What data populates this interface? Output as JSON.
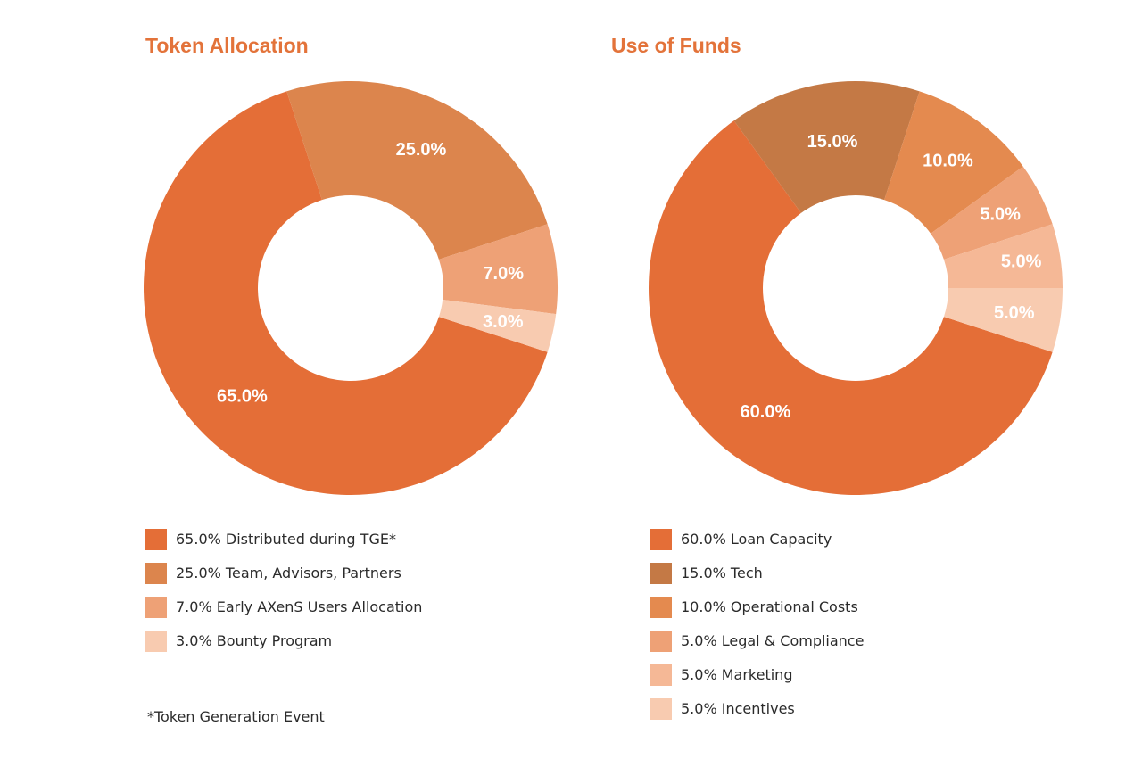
{
  "chart_data": [
    {
      "type": "pie",
      "variant": "donut",
      "title": "Token Allocation",
      "categories": [
        "Distributed during TGE*",
        "Team, Advisors, Partners",
        "Early AXenS Users Allocation",
        "Bounty Program"
      ],
      "values": [
        65.0,
        25.0,
        7.0,
        3.0
      ],
      "data_labels": [
        "65.0%",
        "25.0%",
        "7.0%",
        "3.0%"
      ],
      "colors": [
        "#e46e37",
        "#dc854d",
        "#eea176",
        "#f8cbb0"
      ],
      "legend": {
        "placement": "bottom",
        "entries": [
          "65.0% Distributed during TGE*",
          "25.0% Team, Advisors, Partners",
          "7.0% Early AXenS Users Allocation",
          "3.0% Bounty Program"
        ]
      },
      "footnote": "*Token Generation Event"
    },
    {
      "type": "pie",
      "variant": "donut",
      "title": "Use of Funds",
      "categories": [
        "Loan Capacity",
        "Tech",
        "Operational Costs",
        "Legal & Compliance",
        "Marketing",
        "Incentives"
      ],
      "values": [
        60.0,
        15.0,
        10.0,
        5.0,
        5.0,
        5.0
      ],
      "data_labels": [
        "60.0%",
        "15.0%",
        "10.0%",
        "5.0%",
        "5.0%",
        "5.0%"
      ],
      "colors": [
        "#e46e37",
        "#c47945",
        "#e48a4f",
        "#eea176",
        "#f5b896",
        "#f8cbb0"
      ],
      "legend": {
        "placement": "bottom",
        "entries": [
          "60.0% Loan Capacity",
          "15.0% Tech",
          "10.0% Operational Costs",
          "5.0% Legal & Compliance",
          "5.0% Marketing",
          "5.0% Incentives"
        ]
      }
    }
  ]
}
